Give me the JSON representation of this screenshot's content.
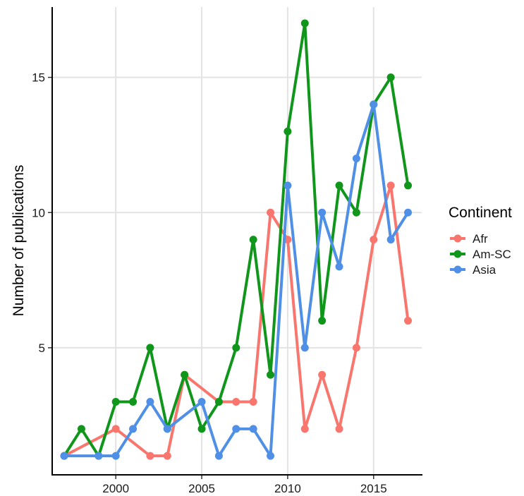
{
  "chart_data": {
    "type": "line",
    "title": "",
    "xlabel": "",
    "ylabel": "Number of publications",
    "xlim": [
      1996.3,
      2017.8
    ],
    "ylim": [
      0.3,
      17.6
    ],
    "xticks": [
      2000,
      2005,
      2010,
      2015
    ],
    "yticks": [
      5,
      10,
      15
    ],
    "grid": true,
    "legend": {
      "title": "Continent",
      "position": "right"
    },
    "x": [
      1997,
      1998,
      1999,
      2000,
      2001,
      2002,
      2003,
      2004,
      2005,
      2006,
      2007,
      2008,
      2009,
      2010,
      2011,
      2012,
      2013,
      2014,
      2015,
      2016,
      2017
    ],
    "series": [
      {
        "name": "Afr",
        "color": "#f8766d",
        "values": [
          1,
          null,
          null,
          2,
          null,
          1,
          1,
          4,
          null,
          3,
          3,
          3,
          10,
          9,
          2,
          4,
          2,
          5,
          9,
          11,
          6
        ]
      },
      {
        "name": "Am-SC",
        "color": "#10961b",
        "values": [
          1,
          2,
          1,
          3,
          3,
          5,
          2,
          4,
          2,
          3,
          5,
          9,
          4,
          13,
          17,
          6,
          11,
          10,
          14,
          15,
          11
        ]
      },
      {
        "name": "Asia",
        "color": "#4f8fe6",
        "values": [
          1,
          null,
          1,
          1,
          2,
          3,
          2,
          null,
          3,
          1,
          2,
          2,
          1,
          11,
          5,
          10,
          8,
          12,
          14,
          9,
          10
        ]
      }
    ]
  }
}
